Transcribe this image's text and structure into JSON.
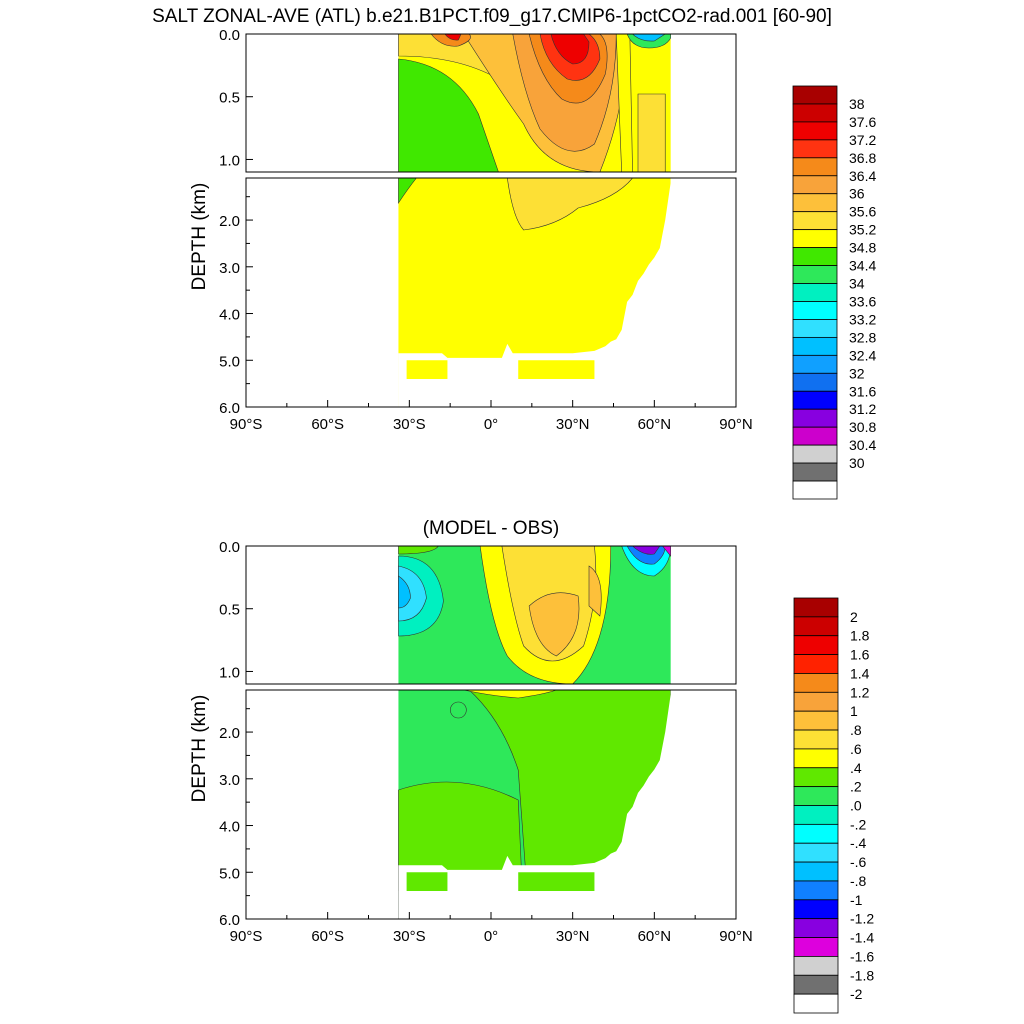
{
  "title": "SALT ZONAL-AVE (ATL) b.e21.B1PCT.f09_g17.CMIP6-1pctCO2-rad.001 [60-90]",
  "subtitle": "(MODEL - OBS)",
  "chart_data": [
    {
      "type": "heatmap",
      "title": "SALT ZONAL-AVE (ATL) b.e21.B1PCT.f09_g17.CMIP6-1pctCO2-rad.001 [60-90]",
      "xlabel": "",
      "ylabel": "DEPTH (km)",
      "xlim": [
        -90,
        90
      ],
      "ylim": [
        6.0,
        0.0
      ],
      "x_tick_labels": [
        "90°S",
        "60°S",
        "30°S",
        "0°",
        "30°N",
        "60°N",
        "90°N"
      ],
      "y_tick_labels_upper": [
        "0.0",
        "0.5",
        "1.0"
      ],
      "y_tick_labels_lower": [
        "2.0",
        "3.0",
        "4.0",
        "5.0",
        "6.0"
      ],
      "colorbar_labels": [
        "38",
        "37.6",
        "37.2",
        "36.8",
        "36.4",
        "36",
        "35.6",
        "35.2",
        "34.8",
        "34.4",
        "34",
        "33.6",
        "33.2",
        "32.8",
        "32.4",
        "32",
        "31.6",
        "31.2",
        "30.8",
        "30.4",
        "30"
      ],
      "colorbar_colors": [
        "#a80000",
        "#cc0000",
        "#ee0000",
        "#ff3311",
        "#f58a1a",
        "#f8a33a",
        "#fdc03a",
        "#fde035",
        "#ffff00",
        "#40e800",
        "#2ee85a",
        "#00f0c0",
        "#00ffff",
        "#30e0ff",
        "#00c0ff",
        "#10a0ff",
        "#1070f0",
        "#0000ff",
        "#8800e0",
        "#cc00cc",
        "#d0d0d0",
        "#707070",
        "#ffffff"
      ]
    },
    {
      "type": "heatmap",
      "title": "(MODEL - OBS)",
      "xlabel": "",
      "ylabel": "DEPTH (km)",
      "xlim": [
        -90,
        90
      ],
      "ylim": [
        6.0,
        0.0
      ],
      "x_tick_labels": [
        "90°S",
        "60°S",
        "30°S",
        "0°",
        "30°N",
        "60°N",
        "90°N"
      ],
      "y_tick_labels_upper": [
        "0.0",
        "0.5",
        "1.0"
      ],
      "y_tick_labels_lower": [
        "2.0",
        "3.0",
        "4.0",
        "5.0",
        "6.0"
      ],
      "colorbar_labels": [
        "2",
        "1.8",
        "1.6",
        "1.4",
        "1.2",
        "1",
        ".8",
        ".6",
        ".4",
        ".2",
        ".0",
        "-.2",
        "-.4",
        "-.6",
        "-.8",
        "-1",
        "-1.2",
        "-1.4",
        "-1.6",
        "-1.8",
        "-2"
      ],
      "colorbar_colors": [
        "#a80000",
        "#cc0000",
        "#ee0000",
        "#ff2200",
        "#f58a1a",
        "#f8a33a",
        "#fdc03a",
        "#fde035",
        "#ffff00",
        "#60e800",
        "#2ee85a",
        "#00f0c0",
        "#00ffff",
        "#30e0ff",
        "#00c0ff",
        "#1080ff",
        "#0000ff",
        "#8800e0",
        "#dd00dd",
        "#d0d0d0",
        "#707070",
        "#ffffff"
      ]
    }
  ]
}
